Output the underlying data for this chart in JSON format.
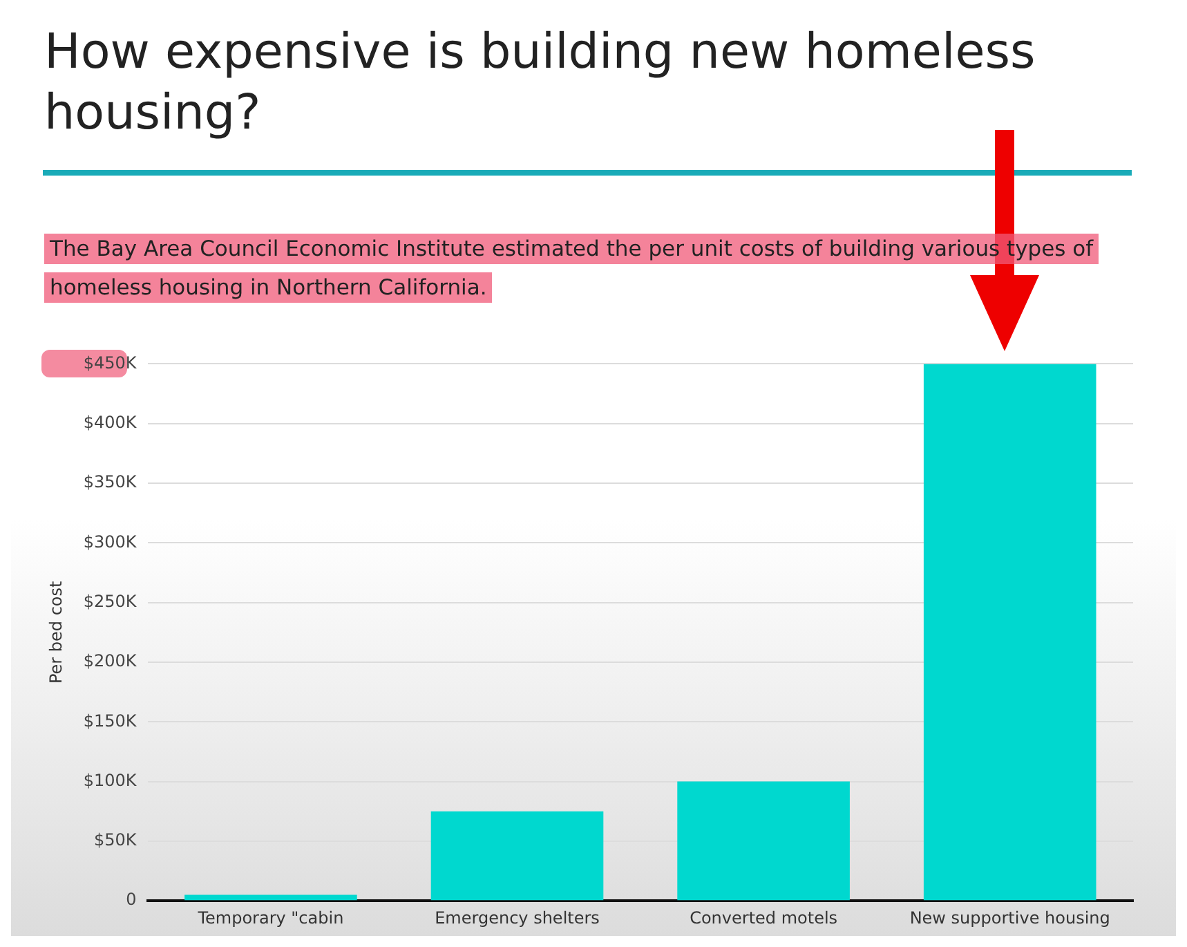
{
  "chart_data": {
    "type": "bar",
    "title": "How expensive is building new homeless housing?",
    "subtitle": "The Bay Area Council Economic Institute estimated the per unit costs of building various types of homeless housing in Northern California.",
    "ylabel": "Per bed cost",
    "categories": [
      "Temporary \"cabin",
      "Emergency shelters",
      "Converted motels",
      "New supportive housing"
    ],
    "values": [
      5000,
      75000,
      100000,
      450000
    ],
    "color": "#00d8cf",
    "ylim": [
      0,
      450000
    ],
    "yticks": [
      {
        "value": 0,
        "label": "0"
      },
      {
        "value": 50000,
        "label": "$50K"
      },
      {
        "value": 100000,
        "label": "$100K"
      },
      {
        "value": 150000,
        "label": "$150K"
      },
      {
        "value": 200000,
        "label": "$200K"
      },
      {
        "value": 250000,
        "label": "$250K"
      },
      {
        "value": 300000,
        "label": "$300K"
      },
      {
        "value": 350000,
        "label": "$350K"
      },
      {
        "value": 400000,
        "label": "$400K"
      },
      {
        "value": 450000,
        "label": "$450K"
      }
    ],
    "grid": "y"
  }
}
